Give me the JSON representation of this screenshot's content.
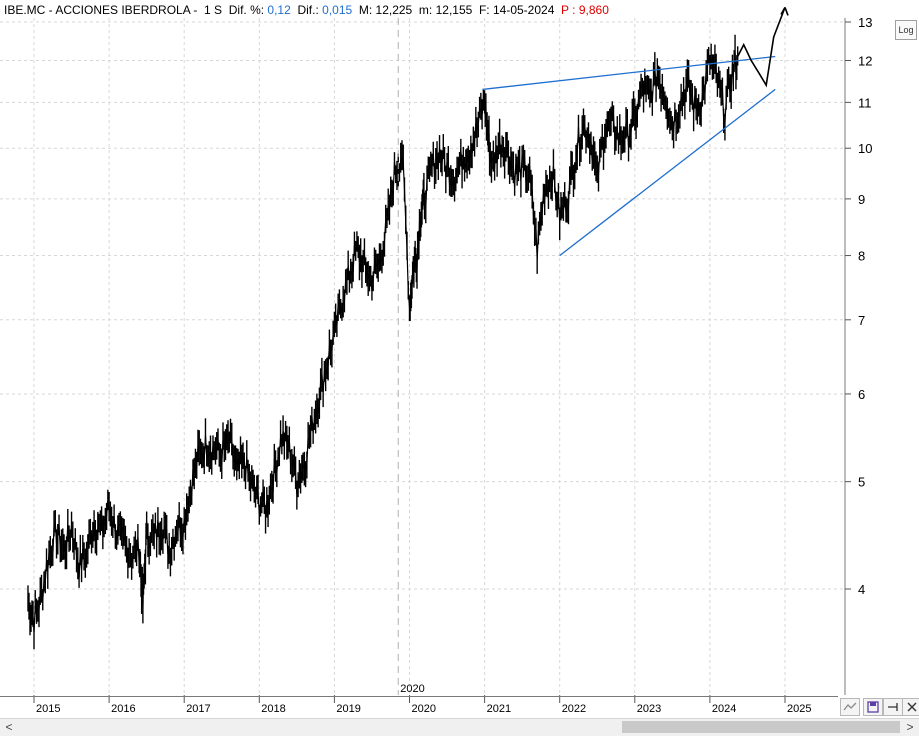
{
  "header": {
    "symbol": "IBE.MC - ACCIONES IBERDROLA -",
    "period": "1 S",
    "dif_pct_label": "Dif. %:",
    "dif_pct_value": "0,12",
    "dif_label": "Dif.:",
    "dif_value": "0,015",
    "max_label": "M:",
    "max_value": "12,225",
    "min_label": "m:",
    "min_value": "12,155",
    "date_label": "F:",
    "date_value": "14-05-2024",
    "price_label": "P :",
    "price_value": "9,860"
  },
  "toolbar": {
    "log_label": "Log",
    "scroll_left_label": "<",
    "scroll_right_label": ">"
  },
  "colors": {
    "price": "#000000",
    "trendline": "#1f6fd0",
    "grid": "#d7d7d7",
    "vline": "#b0b0b0",
    "accent_blue": "#1f6fd0",
    "accent_red": "#e00000"
  },
  "icons": [
    "log-scale-toggle",
    "chart-scale-icon",
    "save-icon",
    "pin-icon",
    "close-icon"
  ],
  "chart_data": {
    "type": "line",
    "y_scale": "log",
    "ylim": [
      3.6,
      13.0
    ],
    "y_ticks": [
      4,
      5,
      6,
      7,
      8,
      9,
      10,
      11,
      12,
      13
    ],
    "x_ticks": [
      "2015",
      "2016",
      "2017",
      "2018",
      "2019",
      "2020",
      "2021",
      "2022",
      "2023",
      "2024",
      "2025"
    ],
    "xlim": [
      2014.9,
      2025.9
    ],
    "vertical_marker": {
      "label": "2020",
      "x": 2019.85
    },
    "grid": true,
    "series": [
      {
        "type": "price",
        "x": [
          2014.92,
          2015.0,
          2015.1,
          2015.2,
          2015.3,
          2015.4,
          2015.5,
          2015.6,
          2015.7,
          2015.8,
          2015.9,
          2016.0,
          2016.1,
          2016.2,
          2016.3,
          2016.4,
          2016.45,
          2016.5,
          2016.6,
          2016.7,
          2016.8,
          2016.9,
          2017.0,
          2017.1,
          2017.2,
          2017.3,
          2017.4,
          2017.5,
          2017.6,
          2017.7,
          2017.8,
          2017.9,
          2018.0,
          2018.1,
          2018.2,
          2018.3,
          2018.4,
          2018.5,
          2018.6,
          2018.7,
          2018.8,
          2018.9,
          2019.0,
          2019.1,
          2019.2,
          2019.3,
          2019.4,
          2019.5,
          2019.6,
          2019.7,
          2019.8,
          2019.9,
          2020.0,
          2020.05,
          2020.1,
          2020.15,
          2020.2,
          2020.3,
          2020.4,
          2020.5,
          2020.6,
          2020.7,
          2020.8,
          2020.9,
          2021.0,
          2021.05,
          2021.1,
          2021.2,
          2021.3,
          2021.4,
          2021.5,
          2021.6,
          2021.7,
          2021.8,
          2021.9,
          2022.0,
          2022.1,
          2022.2,
          2022.3,
          2022.4,
          2022.5,
          2022.6,
          2022.7,
          2022.8,
          2022.9,
          2023.0,
          2023.1,
          2023.2,
          2023.3,
          2023.4,
          2023.5,
          2023.6,
          2023.7,
          2023.8,
          2023.9,
          2024.0,
          2024.1,
          2024.2,
          2024.3,
          2024.37
        ],
        "values": [
          3.9,
          3.75,
          3.95,
          4.3,
          4.5,
          4.35,
          4.55,
          4.2,
          4.3,
          4.6,
          4.5,
          4.75,
          4.5,
          4.4,
          4.3,
          4.35,
          3.85,
          4.5,
          4.45,
          4.6,
          4.35,
          4.55,
          4.6,
          5.0,
          5.3,
          5.4,
          5.35,
          5.3,
          5.45,
          5.1,
          5.2,
          4.95,
          4.8,
          4.75,
          5.1,
          5.5,
          5.35,
          5.0,
          5.2,
          5.6,
          6.0,
          6.4,
          6.8,
          7.3,
          7.7,
          8.1,
          7.8,
          7.6,
          7.9,
          8.5,
          9.5,
          9.9,
          7.2,
          7.8,
          8.0,
          8.8,
          9.0,
          9.6,
          9.9,
          9.6,
          9.4,
          9.8,
          10.0,
          10.4,
          11.0,
          10.2,
          9.6,
          10.1,
          10.0,
          9.5,
          9.6,
          9.4,
          8.1,
          9.2,
          9.5,
          8.7,
          9.0,
          9.8,
          10.5,
          10.3,
          9.4,
          10.4,
          10.5,
          10.2,
          10.3,
          10.6,
          11.3,
          11.1,
          11.7,
          11.2,
          10.5,
          11.0,
          11.4,
          10.9,
          11.1,
          12.0,
          11.5,
          10.8,
          11.7,
          12.1
        ]
      },
      {
        "type": "projection",
        "x": [
          2024.37,
          2024.45,
          2024.55,
          2024.65,
          2024.75,
          2024.85,
          2025.0
        ],
        "values": [
          12.1,
          12.4,
          12.0,
          11.7,
          11.4,
          12.6,
          13.4
        ]
      },
      {
        "type": "trendline-upper",
        "x": [
          2020.97,
          2024.87
        ],
        "values": [
          11.3,
          12.1
        ]
      },
      {
        "type": "trendline-lower",
        "x": [
          2022.0,
          2024.87
        ],
        "values": [
          8.0,
          11.3
        ]
      }
    ]
  }
}
